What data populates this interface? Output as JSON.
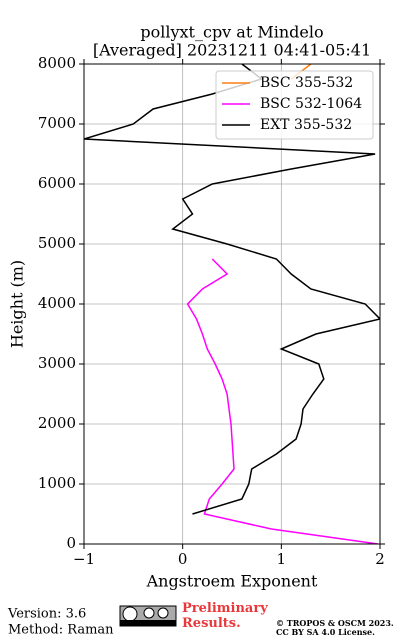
{
  "chart_data": {
    "type": "profile",
    "title": "pollyxt_cpv at Mindelo",
    "subtitle": "[Averaged] 20231211 04:41-05:41",
    "x_label": "Angstroem Exponent",
    "y_label": "Height (m)",
    "y": [
      0,
      250,
      500,
      750,
      1000,
      1250,
      1500,
      1750,
      2000,
      2250,
      2500,
      2750,
      3000,
      3250,
      3500,
      3750,
      4000,
      4250,
      4500,
      4750,
      5000,
      5250,
      5500,
      5750,
      6000,
      6250,
      6500,
      6750,
      7000,
      7250,
      7500,
      7750,
      8000
    ],
    "series": [
      {
        "name": "BSC 355-532",
        "color": "#ff7f0e",
        "values": [
          null,
          null,
          null,
          null,
          null,
          null,
          null,
          null,
          null,
          null,
          null,
          null,
          null,
          null,
          null,
          null,
          null,
          null,
          null,
          null,
          null,
          null,
          null,
          null,
          null,
          null,
          null,
          null,
          null,
          null,
          null,
          1.1,
          1.3
        ]
      },
      {
        "name": "BSC 532-1064",
        "color": "#ff00ff",
        "values": [
          1.98,
          0.9,
          0.22,
          0.27,
          0.4,
          0.52,
          0.51,
          0.5,
          0.49,
          0.47,
          0.45,
          0.4,
          0.33,
          0.25,
          0.2,
          0.14,
          0.05,
          0.2,
          0.45,
          0.3,
          null,
          null,
          null,
          null,
          null,
          null,
          null,
          null,
          null,
          null,
          null,
          null,
          null
        ]
      },
      {
        "name": "EXT 355-532",
        "color": "#000000",
        "values": [
          null,
          null,
          0.1,
          0.6,
          0.67,
          0.7,
          0.95,
          1.15,
          1.2,
          1.22,
          1.32,
          1.43,
          1.38,
          1.0,
          1.35,
          2.0,
          1.85,
          1.3,
          1.1,
          0.95,
          0.45,
          -0.1,
          0.1,
          0.0,
          0.3,
          1.1,
          1.95,
          -1.0,
          -0.5,
          -0.3,
          0.3,
          0.8,
          0.6
        ]
      }
    ],
    "xlim": [
      -1,
      2
    ],
    "xticks": [
      {
        "value": -1,
        "label": "−1"
      },
      0,
      1,
      2
    ],
    "ylim": [
      0,
      8000
    ],
    "yticks": [
      0,
      1000,
      2000,
      3000,
      4000,
      5000,
      6000,
      7000,
      8000
    ],
    "grid": true,
    "legend": "upper right"
  },
  "footer": {
    "version": "Version: 3.6",
    "method": "Method: Raman",
    "notice": "Preliminary Results.",
    "copyright": "© TROPOS & OSCM 2023.",
    "license": "CC BY SA 4.0 License."
  }
}
